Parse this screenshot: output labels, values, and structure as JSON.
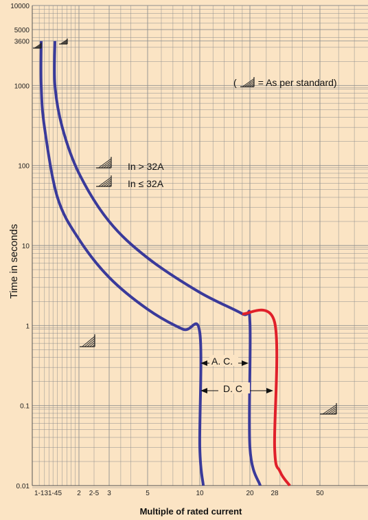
{
  "chart_data": {
    "type": "line",
    "xlabel": "Multiple of rated current",
    "ylabel": "Time in seconds",
    "y_scale": "log",
    "ylim": [
      0.01,
      10000
    ],
    "y_ticks": [
      "10000",
      "5000",
      "3600",
      "1000",
      "100",
      "10",
      "1",
      "0.1",
      "0.01"
    ],
    "x_ticks": [
      "1-13",
      "1-45",
      "2",
      "2-5",
      "3",
      "5",
      "10",
      "20",
      "28",
      "50"
    ],
    "grid": true,
    "colors": {
      "curve": "#3a3a9a",
      "extension": "#e0202a",
      "background": "#fbe4c4",
      "grid": "#8e8e8e"
    },
    "series": [
      {
        "color": "#3a3a9a",
        "points": [
          [
            1.13,
            3600
          ],
          [
            1.13,
            1000
          ],
          [
            1.2,
            300
          ],
          [
            1.5,
            40
          ],
          [
            2,
            12
          ],
          [
            3,
            4
          ],
          [
            5,
            1.6
          ],
          [
            8,
            0.9
          ],
          [
            10,
            0.82
          ],
          [
            10,
            0.03
          ],
          [
            10.5,
            0.01
          ]
        ]
      },
      {
        "color": "#3a3a9a",
        "points": [
          [
            1.45,
            3600
          ],
          [
            1.45,
            1000
          ],
          [
            1.6,
            300
          ],
          [
            2,
            80
          ],
          [
            3,
            20
          ],
          [
            5,
            7
          ],
          [
            10,
            2.6
          ],
          [
            18,
            1.4
          ],
          [
            20,
            1.1
          ],
          [
            20,
            0.03
          ],
          [
            23,
            0.01
          ]
        ]
      },
      {
        "color": "#e0202a",
        "points": [
          [
            18,
            1.4
          ],
          [
            28,
            1.1
          ],
          [
            28,
            0.03
          ],
          [
            30,
            0.015
          ],
          [
            34,
            0.01
          ]
        ]
      }
    ],
    "annotations": [
      {
        "text": "(        = As per standard)"
      },
      {
        "text": "In > 32A"
      },
      {
        "text": "In ≤ 32A"
      },
      {
        "text": "A. C."
      },
      {
        "text": "D. C"
      }
    ]
  }
}
